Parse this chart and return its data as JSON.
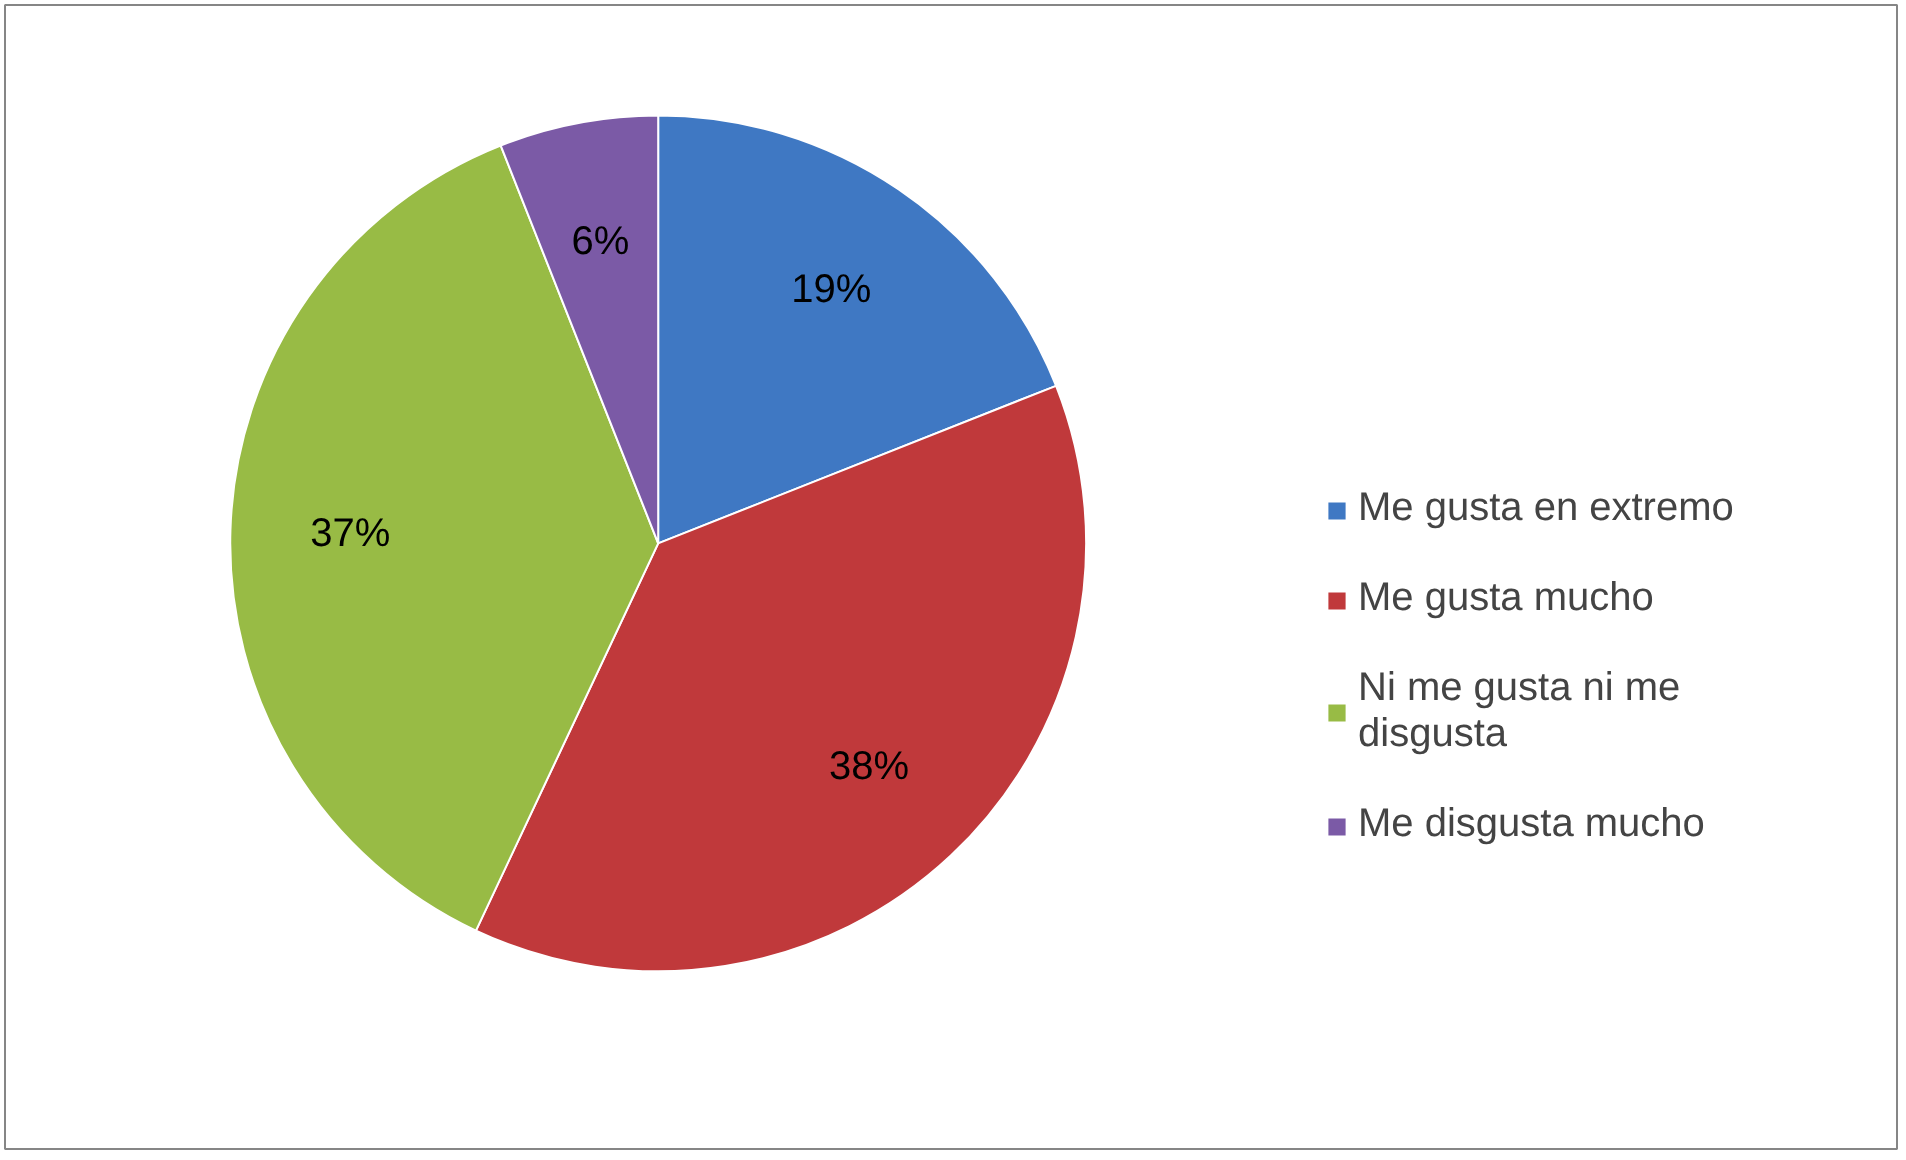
{
  "chart_data": {
    "type": "pie",
    "categories": [
      "Me gusta en extremo",
      "Me gusta mucho",
      "Ni me gusta ni me disgusta",
      "Me disgusta mucho"
    ],
    "values": [
      19,
      38,
      37,
      6
    ],
    "colors": [
      "#3f78c3",
      "#c0393b",
      "#98bb45",
      "#7b5aa6"
    ],
    "value_labels": [
      "19%",
      "38%",
      "37%",
      "6%"
    ],
    "legend": "right"
  }
}
